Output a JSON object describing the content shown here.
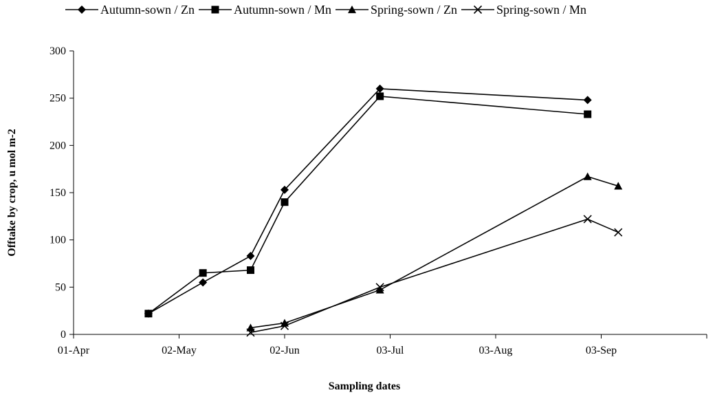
{
  "chart_data": {
    "type": "line",
    "title": "",
    "xlabel": "Sampling dates",
    "ylabel": "Offtake by crop, u mol m-2",
    "x_axis_type": "date",
    "x_ticks": [
      "01-Apr",
      "02-May",
      "02-Jun",
      "03-Jul",
      "03-Aug",
      "03-Sep"
    ],
    "x_tick_dates": [
      "2000-04-01",
      "2000-05-02",
      "2000-06-02",
      "2000-07-03",
      "2000-08-03",
      "2000-09-03"
    ],
    "xlim": [
      "2000-04-01",
      "2000-10-04"
    ],
    "ylim": [
      0,
      300
    ],
    "y_ticks": [
      0,
      50,
      100,
      150,
      200,
      250,
      300
    ],
    "grid": false,
    "legend_position": "top",
    "series": [
      {
        "name": "Autumn-sown / Zn",
        "marker": "diamond",
        "points": [
          {
            "x": "2000-04-23",
            "y": 22
          },
          {
            "x": "2000-05-09",
            "y": 55
          },
          {
            "x": "2000-05-23",
            "y": 83
          },
          {
            "x": "2000-06-02",
            "y": 153
          },
          {
            "x": "2000-06-30",
            "y": 260
          },
          {
            "x": "2000-08-30",
            "y": 248
          }
        ]
      },
      {
        "name": "Autumn-sown / Mn",
        "marker": "square",
        "points": [
          {
            "x": "2000-04-23",
            "y": 22
          },
          {
            "x": "2000-05-09",
            "y": 65
          },
          {
            "x": "2000-05-23",
            "y": 68
          },
          {
            "x": "2000-06-02",
            "y": 140
          },
          {
            "x": "2000-06-30",
            "y": 252
          },
          {
            "x": "2000-08-30",
            "y": 233
          }
        ]
      },
      {
        "name": "Spring-sown / Zn",
        "marker": "triangle",
        "points": [
          {
            "x": "2000-05-23",
            "y": 7
          },
          {
            "x": "2000-06-02",
            "y": 12
          },
          {
            "x": "2000-06-30",
            "y": 47
          },
          {
            "x": "2000-08-30",
            "y": 167
          },
          {
            "x": "2000-09-08",
            "y": 157
          }
        ]
      },
      {
        "name": "Spring-sown / Mn",
        "marker": "x",
        "points": [
          {
            "x": "2000-05-23",
            "y": 2
          },
          {
            "x": "2000-06-02",
            "y": 9
          },
          {
            "x": "2000-06-30",
            "y": 50
          },
          {
            "x": "2000-08-30",
            "y": 122
          },
          {
            "x": "2000-09-08",
            "y": 108
          }
        ]
      }
    ]
  }
}
